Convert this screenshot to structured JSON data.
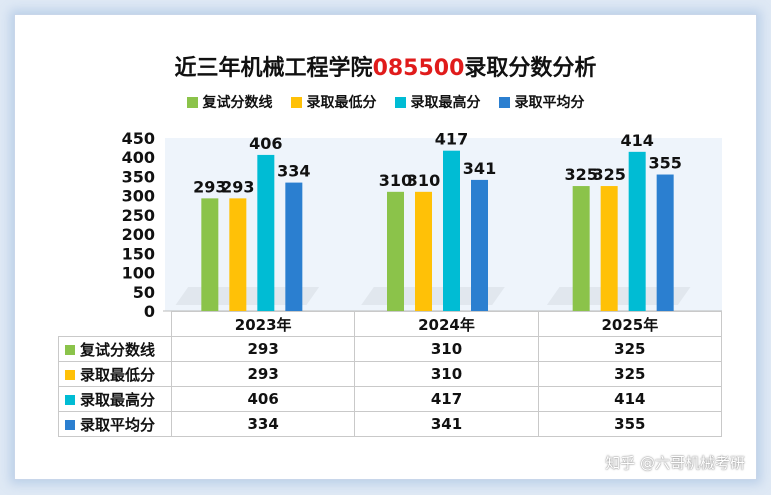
{
  "title": {
    "prefix": "近三年机械工程学院",
    "code": "085500",
    "suffix": "录取分数分析"
  },
  "watermark": "知乎 @六哥机械考研",
  "chart_data": {
    "type": "bar",
    "categories": [
      "2023年",
      "2024年",
      "2025年"
    ],
    "ylim": [
      0,
      450
    ],
    "yticks": [
      0,
      50,
      100,
      150,
      200,
      250,
      300,
      350,
      400,
      450
    ],
    "legend_position": "top",
    "series": [
      {
        "name": "复试分数线",
        "color": "#8bc34a",
        "values": [
          293,
          310,
          325
        ]
      },
      {
        "name": "录取最低分",
        "color": "#ffc107",
        "values": [
          293,
          310,
          325
        ]
      },
      {
        "name": "录取最高分",
        "color": "#00bcd4",
        "values": [
          406,
          417,
          414
        ]
      },
      {
        "name": "录取平均分",
        "color": "#2b7fd0",
        "values": [
          334,
          341,
          355
        ]
      }
    ]
  }
}
